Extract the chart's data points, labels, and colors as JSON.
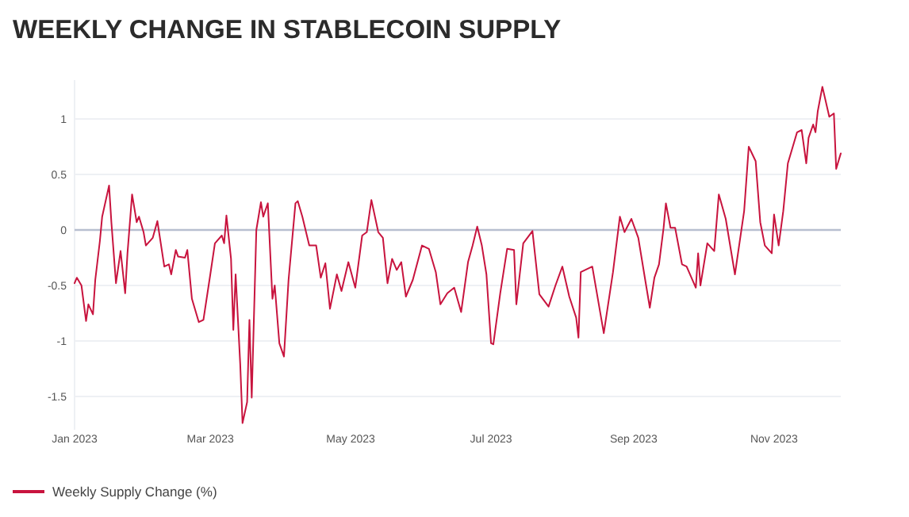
{
  "chart_data": {
    "type": "line",
    "title": "WEEKLY CHANGE IN STABLECOIN SUPPLY",
    "x": [
      "2023-01-01",
      "2023-01-02",
      "2023-01-04",
      "2023-01-06",
      "2023-01-07",
      "2023-01-09",
      "2023-01-10",
      "2023-01-12",
      "2023-01-13",
      "2023-01-16",
      "2023-01-17",
      "2023-01-19",
      "2023-01-21",
      "2023-01-23",
      "2023-01-24",
      "2023-01-26",
      "2023-01-28",
      "2023-01-29",
      "2023-01-31",
      "2023-02-01",
      "2023-02-04",
      "2023-02-06",
      "2023-02-09",
      "2023-02-11",
      "2023-02-12",
      "2023-02-14",
      "2023-02-15",
      "2023-02-18",
      "2023-02-19",
      "2023-02-21",
      "2023-02-24",
      "2023-02-26",
      "2023-03-01",
      "2023-03-03",
      "2023-03-06",
      "2023-03-07",
      "2023-03-08",
      "2023-03-10",
      "2023-03-11",
      "2023-03-12",
      "2023-03-14",
      "2023-03-15",
      "2023-03-17",
      "2023-03-18",
      "2023-03-19",
      "2023-03-21",
      "2023-03-23",
      "2023-03-24",
      "2023-03-26",
      "2023-03-28",
      "2023-03-29",
      "2023-03-31",
      "2023-04-02",
      "2023-04-04",
      "2023-04-07",
      "2023-04-08",
      "2023-04-10",
      "2023-04-13",
      "2023-04-16",
      "2023-04-18",
      "2023-04-20",
      "2023-04-22",
      "2023-04-25",
      "2023-04-27",
      "2023-04-30",
      "2023-05-03",
      "2023-05-06",
      "2023-05-08",
      "2023-05-10",
      "2023-05-13",
      "2023-05-15",
      "2023-05-17",
      "2023-05-19",
      "2023-05-21",
      "2023-05-23",
      "2023-05-25",
      "2023-05-28",
      "2023-06-01",
      "2023-06-04",
      "2023-06-07",
      "2023-06-09",
      "2023-06-12",
      "2023-06-15",
      "2023-06-18",
      "2023-06-21",
      "2023-06-23",
      "2023-06-25",
      "2023-06-27",
      "2023-06-29",
      "2023-07-01",
      "2023-07-02",
      "2023-07-05",
      "2023-07-08",
      "2023-07-11",
      "2023-07-12",
      "2023-07-15",
      "2023-07-19",
      "2023-07-22",
      "2023-07-26",
      "2023-07-29",
      "2023-08-01",
      "2023-08-04",
      "2023-08-07",
      "2023-08-08",
      "2023-08-09",
      "2023-08-14",
      "2023-08-19",
      "2023-08-23",
      "2023-08-26",
      "2023-08-28",
      "2023-08-31",
      "2023-09-03",
      "2023-09-06",
      "2023-09-08",
      "2023-09-10",
      "2023-09-12",
      "2023-09-14",
      "2023-09-15",
      "2023-09-17",
      "2023-09-19",
      "2023-09-22",
      "2023-09-24",
      "2023-09-28",
      "2023-09-29",
      "2023-09-30",
      "2023-10-03",
      "2023-10-06",
      "2023-10-08",
      "2023-10-11",
      "2023-10-15",
      "2023-10-19",
      "2023-10-21",
      "2023-10-24",
      "2023-10-26",
      "2023-10-28",
      "2023-10-31",
      "2023-11-01",
      "2023-11-03",
      "2023-11-05",
      "2023-11-07",
      "2023-11-11",
      "2023-11-13",
      "2023-11-15",
      "2023-11-16",
      "2023-11-18",
      "2023-11-19",
      "2023-11-20",
      "2023-11-22",
      "2023-11-25",
      "2023-11-27",
      "2023-11-28",
      "2023-11-30"
    ],
    "series": [
      {
        "name": "Weekly Supply Change (%)",
        "color": "#c8143e",
        "values": [
          -0.48,
          -0.43,
          -0.5,
          -0.82,
          -0.67,
          -0.76,
          -0.45,
          -0.1,
          0.12,
          0.4,
          0.07,
          -0.48,
          -0.19,
          -0.57,
          -0.21,
          0.32,
          0.07,
          0.12,
          -0.02,
          -0.14,
          -0.07,
          0.08,
          -0.33,
          -0.31,
          -0.4,
          -0.18,
          -0.24,
          -0.25,
          -0.18,
          -0.62,
          -0.83,
          -0.81,
          -0.4,
          -0.12,
          -0.05,
          -0.12,
          0.13,
          -0.26,
          -0.9,
          -0.4,
          -1.21,
          -1.74,
          -1.55,
          -0.81,
          -1.51,
          0,
          0.25,
          0.12,
          0.24,
          -0.62,
          -0.5,
          -1.02,
          -1.14,
          -0.45,
          0.24,
          0.26,
          0.12,
          -0.14,
          -0.14,
          -0.43,
          -0.3,
          -0.71,
          -0.4,
          -0.55,
          -0.29,
          -0.52,
          -0.05,
          -0.02,
          0.27,
          -0.02,
          -0.07,
          -0.48,
          -0.26,
          -0.36,
          -0.29,
          -0.6,
          -0.45,
          -0.14,
          -0.17,
          -0.38,
          -0.67,
          -0.57,
          -0.52,
          -0.74,
          -0.29,
          -0.14,
          0.03,
          -0.14,
          -0.4,
          -1.02,
          -1.03,
          -0.57,
          -0.17,
          -0.18,
          -0.67,
          -0.12,
          -0.01,
          -0.58,
          -0.69,
          -0.5,
          -0.33,
          -0.6,
          -0.79,
          -0.97,
          -0.38,
          -0.33,
          -0.93,
          -0.38,
          0.12,
          -0.02,
          0.1,
          -0.07,
          -0.45,
          -0.7,
          -0.43,
          -0.31,
          0.02,
          0.24,
          0.02,
          0.02,
          -0.31,
          -0.33,
          -0.52,
          -0.21,
          -0.5,
          -0.12,
          -0.19,
          0.32,
          0.1,
          -0.4,
          0.17,
          0.75,
          0.62,
          0.07,
          -0.14,
          -0.21,
          0.14,
          -0.14,
          0.17,
          0.6,
          0.88,
          0.9,
          0.6,
          0.83,
          0.95,
          0.88,
          1.07,
          1.29,
          1.02,
          1.05,
          0.55,
          0.69
        ]
      }
    ],
    "xlim": [
      "2023-01-01",
      "2023-11-30"
    ],
    "xticks": [
      {
        "value": "2023-01-01",
        "label": "Jan 2023"
      },
      {
        "value": "2023-03-01",
        "label": "Mar 2023"
      },
      {
        "value": "2023-05-01",
        "label": "May 2023"
      },
      {
        "value": "2023-07-01",
        "label": "Jul 2023"
      },
      {
        "value": "2023-09-01",
        "label": "Sep 2023"
      },
      {
        "value": "2023-11-01",
        "label": "Nov 2023"
      }
    ],
    "ylim": [
      -1.8,
      1.35
    ],
    "yticks": [
      -1.5,
      -1,
      -0.5,
      0,
      0.5,
      1
    ],
    "grid": "y",
    "ref_lines": [
      {
        "axis": "y",
        "value": 0,
        "color": "#b8bfd0"
      }
    ],
    "legend": "bottom left",
    "line_style": "solid"
  }
}
